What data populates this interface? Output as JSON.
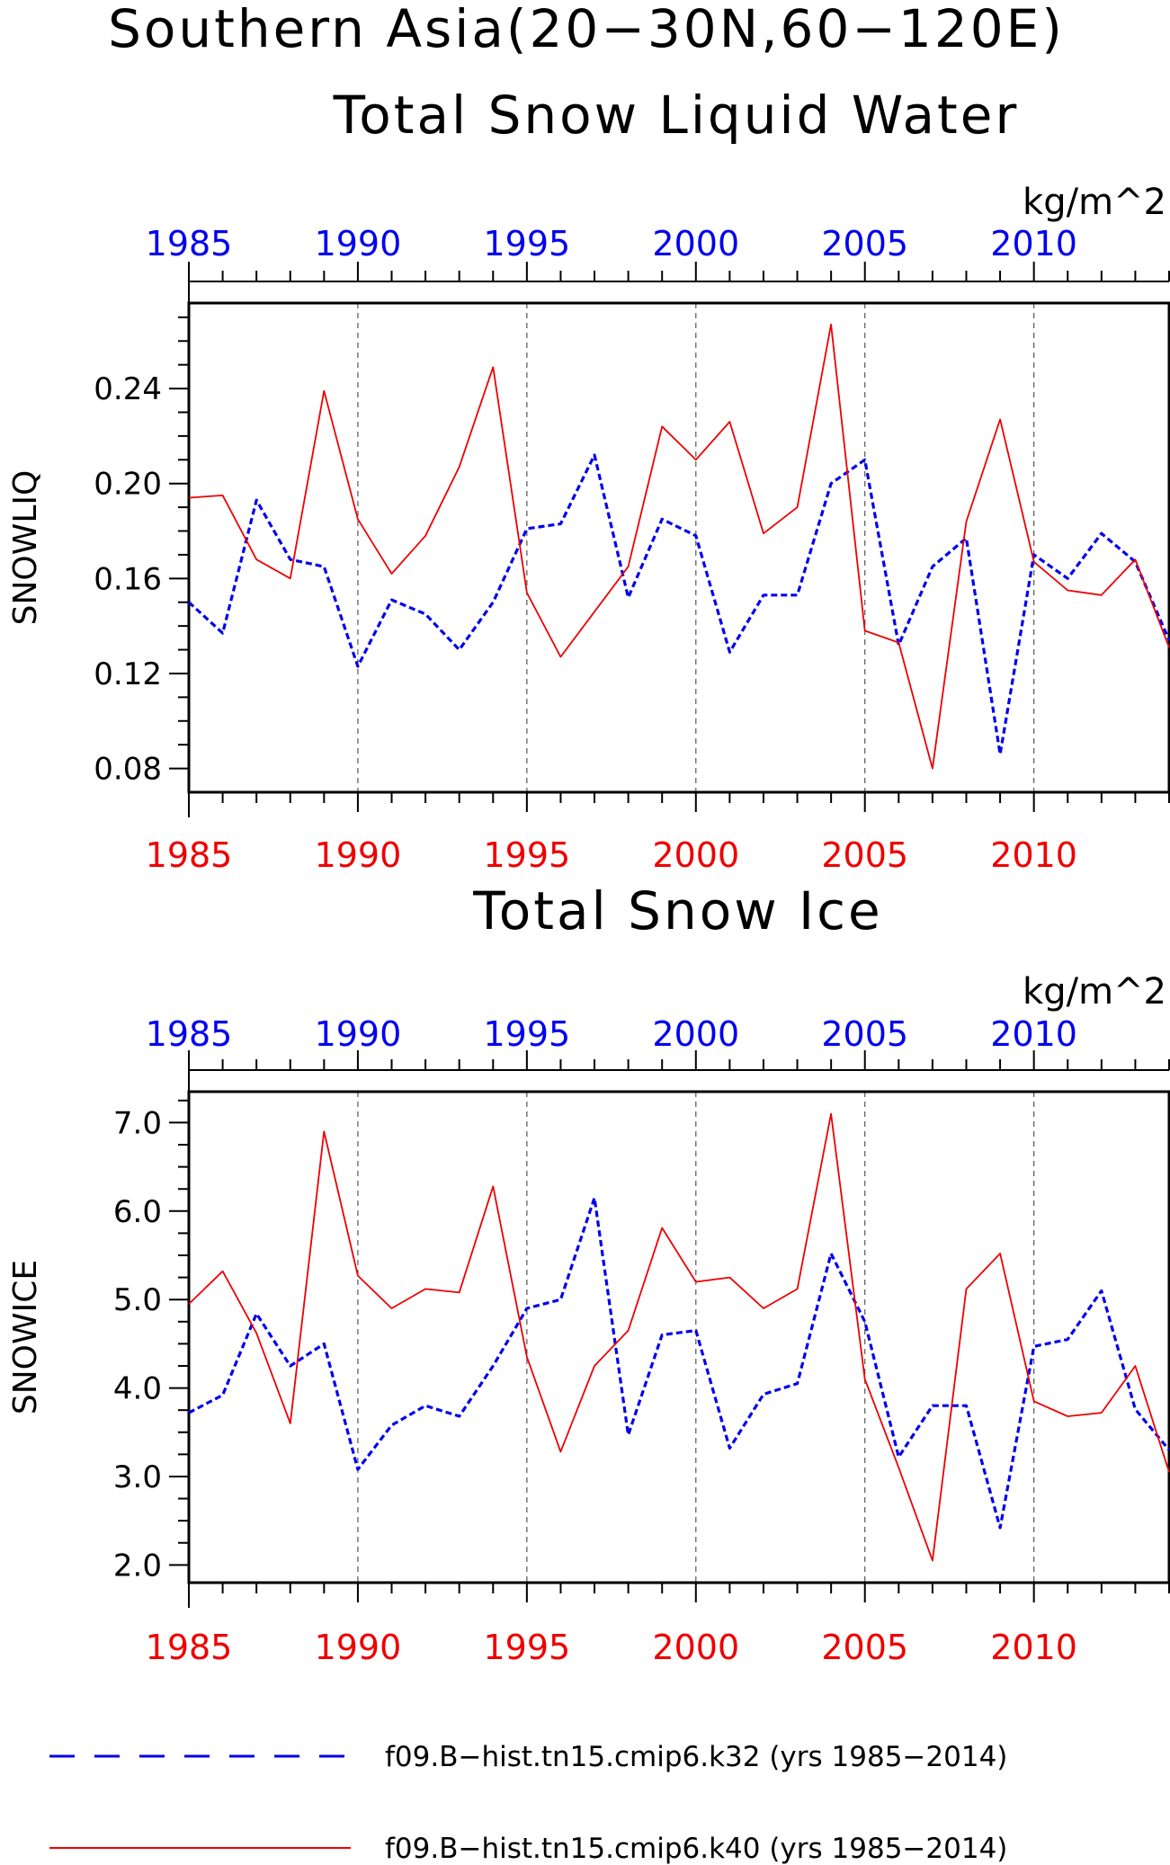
{
  "figure": {
    "title_line1": "Southern Asia(20−30N,60−120E)",
    "title_line2": "Total Snow Liquid Water",
    "colors": {
      "k32": "#0000ee",
      "k40": "#ee0000",
      "axis": "#000000",
      "grid": "#555555"
    }
  },
  "legend": [
    {
      "label": "f09.B−hist.tn15.cmip6.k32 (yrs 1985−2014)",
      "color": "#0000ee",
      "style": "dashed"
    },
    {
      "label": "f09.B−hist.tn15.cmip6.k40 (yrs 1985−2014)",
      "color": "#ee0000",
      "style": "solid"
    }
  ],
  "chart_data": [
    {
      "type": "line",
      "title": "Total Snow Liquid Water",
      "units": "kg/m^2",
      "ylabel": "SNOWLIQ",
      "xlim": [
        1985,
        2014
      ],
      "ylim": [
        0.07,
        0.276
      ],
      "yticks": [
        "0.08",
        "0.12",
        "0.16",
        "0.20",
        "0.24"
      ],
      "xticks": [
        "1985",
        "1990",
        "1995",
        "2000",
        "2005",
        "2010"
      ],
      "x": [
        1985,
        1986,
        1987,
        1988,
        1989,
        1990,
        1991,
        1992,
        1993,
        1994,
        1995,
        1996,
        1997,
        1998,
        1999,
        2000,
        2001,
        2002,
        2003,
        2004,
        2005,
        2006,
        2007,
        2008,
        2009,
        2010,
        2011,
        2012,
        2013,
        2014
      ],
      "series": [
        {
          "name": "f09.B−hist.tn15.cmip6.k32 (yrs 1985−2014)",
          "color": "#0000ee",
          "style": "dashed",
          "values": [
            0.15,
            0.137,
            0.193,
            0.168,
            0.165,
            0.123,
            0.151,
            0.145,
            0.13,
            0.15,
            0.181,
            0.183,
            0.212,
            0.152,
            0.185,
            0.178,
            0.129,
            0.153,
            0.153,
            0.2,
            0.21,
            0.132,
            0.165,
            0.177,
            0.086,
            0.17,
            0.16,
            0.179,
            0.167,
            0.134
          ]
        },
        {
          "name": "f09.B−hist.tn15.cmip6.k40 (yrs 1985−2014)",
          "color": "#ee0000",
          "style": "solid",
          "values": [
            0.194,
            0.195,
            0.168,
            0.16,
            0.239,
            0.185,
            0.162,
            0.178,
            0.207,
            0.249,
            0.154,
            0.127,
            0.146,
            0.165,
            0.224,
            0.21,
            0.226,
            0.179,
            0.19,
            0.267,
            0.138,
            0.133,
            0.08,
            0.184,
            0.227,
            0.167,
            0.155,
            0.153,
            0.168,
            0.131
          ]
        }
      ]
    },
    {
      "type": "line",
      "title": "Total Snow Ice",
      "units": "kg/m^2",
      "ylabel": "SNOWICE",
      "xlim": [
        1985,
        2014
      ],
      "ylim": [
        1.8,
        7.35
      ],
      "yticks": [
        "2.0",
        "3.0",
        "4.0",
        "5.0",
        "6.0",
        "7.0"
      ],
      "xticks": [
        "1985",
        "1990",
        "1995",
        "2000",
        "2005",
        "2010"
      ],
      "x": [
        1985,
        1986,
        1987,
        1988,
        1989,
        1990,
        1991,
        1992,
        1993,
        1994,
        1995,
        1996,
        1997,
        1998,
        1999,
        2000,
        2001,
        2002,
        2003,
        2004,
        2005,
        2006,
        2007,
        2008,
        2009,
        2010,
        2011,
        2012,
        2013,
        2014
      ],
      "series": [
        {
          "name": "f09.B−hist.tn15.cmip6.k32 (yrs 1985−2014)",
          "color": "#0000ee",
          "style": "dashed",
          "values": [
            3.72,
            3.92,
            4.84,
            4.25,
            4.5,
            3.08,
            3.58,
            3.8,
            3.68,
            4.25,
            4.9,
            5.0,
            6.15,
            3.47,
            4.6,
            4.65,
            3.32,
            3.93,
            4.05,
            5.52,
            4.75,
            3.22,
            3.8,
            3.8,
            2.42,
            4.47,
            4.55,
            5.1,
            3.76,
            3.3
          ]
        },
        {
          "name": "f09.B−hist.tn15.cmip6.k40 (yrs 1985−2014)",
          "color": "#ee0000",
          "style": "solid",
          "values": [
            4.95,
            5.32,
            4.62,
            3.6,
            6.9,
            5.27,
            4.9,
            5.12,
            5.08,
            6.28,
            4.35,
            3.28,
            4.25,
            4.65,
            5.81,
            5.2,
            5.25,
            4.9,
            5.12,
            7.1,
            4.1,
            3.1,
            2.05,
            5.12,
            5.52,
            3.85,
            3.68,
            3.72,
            4.25,
            3.05
          ]
        }
      ]
    }
  ]
}
